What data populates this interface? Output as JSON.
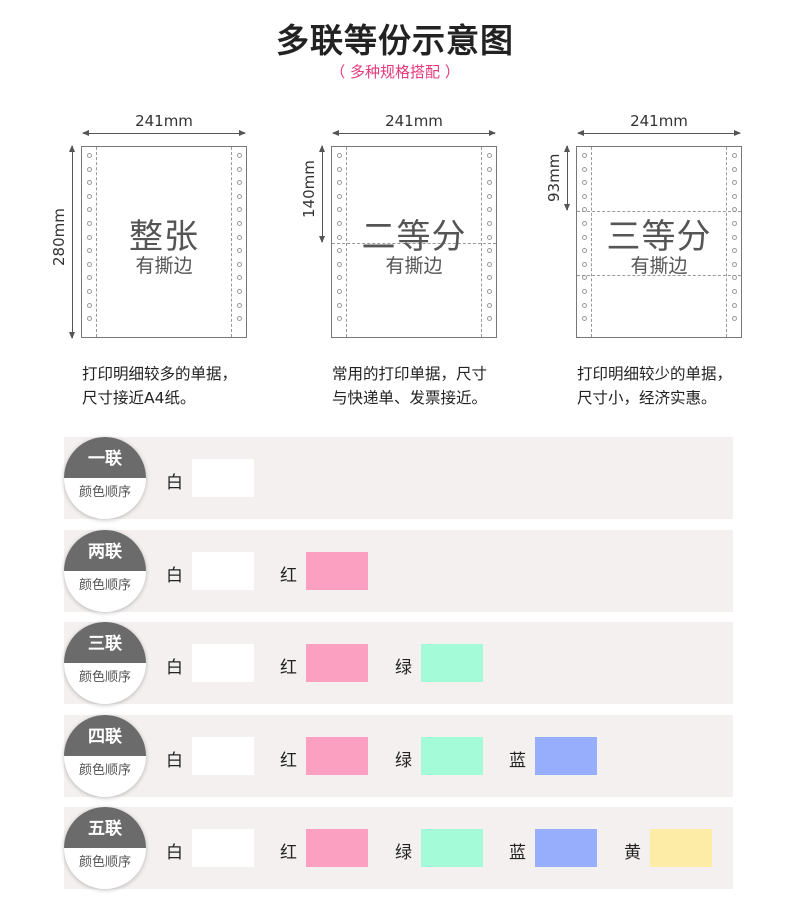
{
  "header": {
    "title": "多联等份示意图",
    "subtitle": "（ 多种规格搭配 ）"
  },
  "diagrams": [
    {
      "width_label": "241mm",
      "height_label": "280mm",
      "big": "整张",
      "small": "有撕边",
      "desc": [
        "打印明细较多的单据，",
        "尺寸接近A4纸。"
      ]
    },
    {
      "width_label": "241mm",
      "height_label": "140mm",
      "big": "二等分",
      "small": "有撕边",
      "desc": [
        "常用的打印单据，尺寸",
        "与快递单、发票接近。"
      ]
    },
    {
      "width_label": "241mm",
      "height_label": "93mm",
      "big": "三等分",
      "small": "有撕边",
      "desc": [
        "打印明细较少的单据，",
        "尺寸小，经济实惠。"
      ]
    }
  ],
  "colors": {
    "white": "#ffffff",
    "red": "#fca0c2",
    "green": "#a3fbd7",
    "blue": "#97aefc",
    "yellow": "#fdeca6"
  },
  "rows": [
    {
      "badge": "一联",
      "sub": "颜色顺序",
      "items": [
        {
          "label": "白",
          "color": "white"
        }
      ]
    },
    {
      "badge": "两联",
      "sub": "颜色顺序",
      "items": [
        {
          "label": "白",
          "color": "white"
        },
        {
          "label": "红",
          "color": "red"
        }
      ]
    },
    {
      "badge": "三联",
      "sub": "颜色顺序",
      "items": [
        {
          "label": "白",
          "color": "white"
        },
        {
          "label": "红",
          "color": "red"
        },
        {
          "label": "绿",
          "color": "green"
        }
      ]
    },
    {
      "badge": "四联",
      "sub": "颜色顺序",
      "items": [
        {
          "label": "白",
          "color": "white"
        },
        {
          "label": "红",
          "color": "red"
        },
        {
          "label": "绿",
          "color": "green"
        },
        {
          "label": "蓝",
          "color": "blue"
        }
      ]
    },
    {
      "badge": "五联",
      "sub": "颜色顺序",
      "items": [
        {
          "label": "白",
          "color": "white"
        },
        {
          "label": "红",
          "color": "red"
        },
        {
          "label": "绿",
          "color": "green"
        },
        {
          "label": "蓝",
          "color": "blue"
        },
        {
          "label": "黄",
          "color": "yellow"
        }
      ]
    }
  ]
}
